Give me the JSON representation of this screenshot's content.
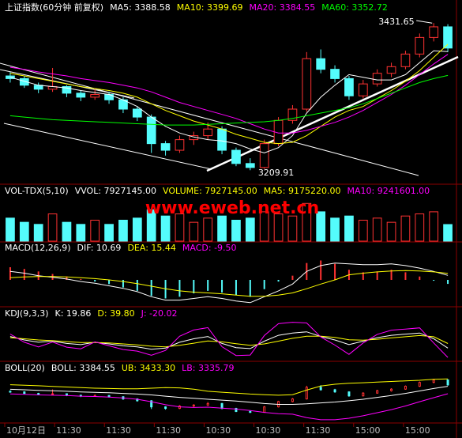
{
  "chart_data": [
    {
      "type": "candlestick",
      "header": [
        {
          "text": "上证指数(60分钟 前复权)",
          "color": "#ffffff"
        },
        {
          "text": "MA5: 3388.58",
          "color": "#ffffff"
        },
        {
          "text": "MA10: 3399.69",
          "color": "#ffff00"
        },
        {
          "text": "MA20: 3384.55",
          "color": "#ff00ff"
        },
        {
          "text": "MA60: 3352.72",
          "color": "#00ff00"
        }
      ],
      "annotations": [
        "3431.65",
        "3209.91"
      ],
      "ylim": [
        3190,
        3445
      ],
      "up_color": "#ff3232",
      "down_color": "#54fcfc",
      "candles": [
        [
          3352,
          3358,
          3342,
          3348
        ],
        [
          3348,
          3352,
          3334,
          3338
        ],
        [
          3338,
          3342,
          3326,
          3332
        ],
        [
          3332,
          3364,
          3328,
          3336
        ],
        [
          3336,
          3338,
          3320,
          3326
        ],
        [
          3326,
          3330,
          3314,
          3320
        ],
        [
          3320,
          3332,
          3316,
          3324
        ],
        [
          3324,
          3328,
          3310,
          3316
        ],
        [
          3316,
          3320,
          3296,
          3302
        ],
        [
          3302,
          3306,
          3284,
          3290
        ],
        [
          3290,
          3294,
          3236,
          3250
        ],
        [
          3250,
          3254,
          3232,
          3240
        ],
        [
          3240,
          3262,
          3236,
          3256
        ],
        [
          3256,
          3268,
          3248,
          3262
        ],
        [
          3262,
          3282,
          3256,
          3272
        ],
        [
          3272,
          3276,
          3234,
          3240
        ],
        [
          3240,
          3244,
          3216,
          3220
        ],
        [
          3220,
          3228,
          3209.91,
          3214
        ],
        [
          3214,
          3256,
          3212,
          3250
        ],
        [
          3250,
          3290,
          3246,
          3285
        ],
        [
          3285,
          3308,
          3280,
          3302
        ],
        [
          3302,
          3388,
          3298,
          3378
        ],
        [
          3378,
          3392,
          3356,
          3362
        ],
        [
          3362,
          3368,
          3342,
          3348
        ],
        [
          3348,
          3352,
          3316,
          3322
        ],
        [
          3322,
          3346,
          3318,
          3340
        ],
        [
          3340,
          3362,
          3336,
          3356
        ],
        [
          3356,
          3372,
          3350,
          3366
        ],
        [
          3366,
          3390,
          3362,
          3385
        ],
        [
          3385,
          3416,
          3380,
          3410
        ],
        [
          3410,
          3431.65,
          3404,
          3426
        ],
        [
          3426,
          3430,
          3388,
          3394
        ]
      ],
      "series": [
        {
          "color": "#ffffff",
          "values": [
            3350,
            3344,
            3338,
            3336,
            3334,
            3330,
            3327,
            3324,
            3316,
            3306,
            3290,
            3276,
            3266,
            3260,
            3256,
            3254,
            3250,
            3242,
            3236,
            3244,
            3262,
            3296,
            3320,
            3338,
            3354,
            3350,
            3346,
            3346,
            3354,
            3372,
            3390,
            3388.58
          ]
        },
        {
          "color": "#ffff00",
          "values": [
            3356,
            3352,
            3348,
            3344,
            3340,
            3336,
            3333,
            3330,
            3326,
            3320,
            3310,
            3300,
            3292,
            3284,
            3278,
            3272,
            3264,
            3258,
            3252,
            3250,
            3252,
            3262,
            3276,
            3290,
            3300,
            3306,
            3318,
            3330,
            3344,
            3360,
            3380,
            3399.69
          ]
        },
        {
          "color": "#ff00ff",
          "values": [
            3365,
            3362,
            3358,
            3355,
            3352,
            3348,
            3345,
            3342,
            3338,
            3334,
            3328,
            3320,
            3312,
            3306,
            3300,
            3294,
            3288,
            3280,
            3272,
            3266,
            3266,
            3270,
            3276,
            3282,
            3290,
            3300,
            3312,
            3324,
            3338,
            3354,
            3370,
            3384.55
          ]
        },
        {
          "color": "#00ff00",
          "values": [
            3292,
            3290,
            3288,
            3286,
            3285,
            3284,
            3283,
            3282,
            3281,
            3280,
            3279,
            3278,
            3278,
            3278,
            3279,
            3280,
            3281,
            3282,
            3283,
            3285,
            3288,
            3292,
            3296,
            3300,
            3304,
            3310,
            3318,
            3326,
            3334,
            3342,
            3348,
            3352.72
          ]
        }
      ]
    },
    {
      "type": "bar",
      "header": [
        {
          "text": "VOL-TDX(5,10)",
          "color": "#ffffff"
        },
        {
          "text": "VVOL: 7927145.00",
          "color": "#ffffff"
        },
        {
          "text": "VOLUME: 7927145.00",
          "color": "#ffff00"
        },
        {
          "text": "MA5: 9175220.00",
          "color": "#ffff00"
        },
        {
          "text": "MA10: 9241601.00",
          "color": "#ff00ff"
        }
      ],
      "annotation": "www.eweb.net.cn",
      "ylim": [
        0,
        20000000
      ],
      "values": [
        11000000,
        9000000,
        8000000,
        13000000,
        9000000,
        8000000,
        10000000,
        8000000,
        10000000,
        11000000,
        15000000,
        12000000,
        13000000,
        9000000,
        11000000,
        12000000,
        10000000,
        11000000,
        14000000,
        13000000,
        12000000,
        18000000,
        14000000,
        11000000,
        12000000,
        10000000,
        11000000,
        9000000,
        12000000,
        13000000,
        14000000,
        7927145
      ]
    },
    {
      "type": "macd",
      "header": [
        {
          "text": "MACD(12,26,9)",
          "color": "#ffffff"
        },
        {
          "text": "DIF: 10.69",
          "color": "#ffffff"
        },
        {
          "text": "DEA: 15.44",
          "color": "#ffff00"
        },
        {
          "text": "MACD: -9.50",
          "color": "#ff00ff"
        }
      ],
      "ylim": [
        -60,
        60
      ],
      "values": [
        30,
        26,
        20,
        14,
        8,
        2,
        -4,
        -10,
        -18,
        -26,
        -38,
        -44,
        -40,
        -32,
        -26,
        -30,
        -36,
        -40,
        -22,
        -4,
        10,
        40,
        46,
        38,
        24,
        18,
        20,
        24,
        18,
        8,
        -2,
        -9.5
      ],
      "series": [
        {
          "color": "#ffffff",
          "values": [
            20,
            16,
            10,
            6,
            2,
            -4,
            -8,
            -14,
            -20,
            -28,
            -40,
            -48,
            -48,
            -44,
            -40,
            -44,
            -50,
            -54,
            -40,
            -26,
            -10,
            20,
            34,
            40,
            38,
            36,
            36,
            38,
            34,
            28,
            20,
            10.69
          ]
        },
        {
          "color": "#ffff00",
          "values": [
            5,
            7,
            8,
            8,
            7,
            5,
            3,
            0,
            -4,
            -9,
            -15,
            -21,
            -26,
            -29,
            -31,
            -33,
            -36,
            -39,
            -39,
            -36,
            -31,
            -21,
            -10,
            0,
            12,
            16,
            19,
            21,
            22,
            21,
            19,
            15.44
          ]
        }
      ]
    },
    {
      "type": "line",
      "header": [
        {
          "text": "KDJ(9,3,3)",
          "color": "#ffffff"
        },
        {
          "text": "K: 19.86",
          "color": "#ffffff"
        },
        {
          "text": "D: 39.80",
          "color": "#ffff00"
        },
        {
          "text": "J: -20.02",
          "color": "#ff00ff"
        }
      ],
      "ylim": [
        -30,
        140
      ],
      "series": [
        {
          "color": "#ffffff",
          "values": [
            70,
            55,
            45,
            50,
            40,
            35,
            45,
            38,
            30,
            25,
            15,
            20,
            45,
            60,
            70,
            40,
            22,
            18,
            50,
            75,
            85,
            90,
            70,
            55,
            35,
            50,
            65,
            75,
            80,
            85,
            60,
            19.86
          ]
        },
        {
          "color": "#ffff00",
          "values": [
            65,
            60,
            55,
            52,
            48,
            44,
            44,
            42,
            38,
            34,
            28,
            25,
            32,
            41,
            51,
            47,
            39,
            32,
            38,
            50,
            62,
            71,
            71,
            66,
            56,
            54,
            58,
            64,
            69,
            74,
            69,
            39.8
          ]
        },
        {
          "color": "#ff00ff",
          "values": [
            80,
            45,
            25,
            46,
            24,
            17,
            47,
            30,
            14,
            7,
            -11,
            10,
            71,
            98,
            108,
            26,
            -12,
            -10,
            74,
            125,
            131,
            128,
            68,
            33,
            -7,
            42,
            79,
            97,
            102,
            107,
            42,
            -20.02
          ]
        }
      ]
    },
    {
      "type": "boll",
      "header": [
        {
          "text": "BOLL(20)",
          "color": "#ffffff"
        },
        {
          "text": "BOLL: 3384.55",
          "color": "#ffffff"
        },
        {
          "text": "UB: 3433.30",
          "color": "#ffff00"
        },
        {
          "text": "LB: 3335.79",
          "color": "#ff00ff"
        }
      ],
      "ylim": [
        3150,
        3460
      ],
      "series": [
        {
          "color": "#ffffff",
          "values": [
            3365,
            3362,
            3358,
            3355,
            3352,
            3348,
            3345,
            3342,
            3338,
            3334,
            3328,
            3320,
            3312,
            3306,
            3300,
            3294,
            3288,
            3280,
            3272,
            3266,
            3266,
            3270,
            3276,
            3282,
            3290,
            3300,
            3312,
            3324,
            3338,
            3354,
            3370,
            3384.55
          ]
        },
        {
          "color": "#ffff00",
          "values": [
            3395,
            3392,
            3388,
            3384,
            3380,
            3376,
            3372,
            3370,
            3368,
            3368,
            3372,
            3376,
            3374,
            3366,
            3352,
            3346,
            3340,
            3334,
            3330,
            3326,
            3330,
            3360,
            3386,
            3398,
            3404,
            3408,
            3412,
            3416,
            3420,
            3424,
            3430,
            3433.3
          ]
        },
        {
          "color": "#ff00ff",
          "values": [
            3335,
            3332,
            3328,
            3326,
            3324,
            3320,
            3318,
            3314,
            3308,
            3300,
            3284,
            3264,
            3250,
            3246,
            3248,
            3242,
            3236,
            3226,
            3214,
            3206,
            3202,
            3180,
            3166,
            3166,
            3176,
            3192,
            3212,
            3232,
            3256,
            3284,
            3310,
            3335.79
          ]
        }
      ],
      "x_labels": [
        "10月12日",
        "11:30",
        "11:30",
        "11:30",
        "10:30",
        "10:30",
        "11:30",
        "15:00",
        "15:00"
      ]
    }
  ]
}
